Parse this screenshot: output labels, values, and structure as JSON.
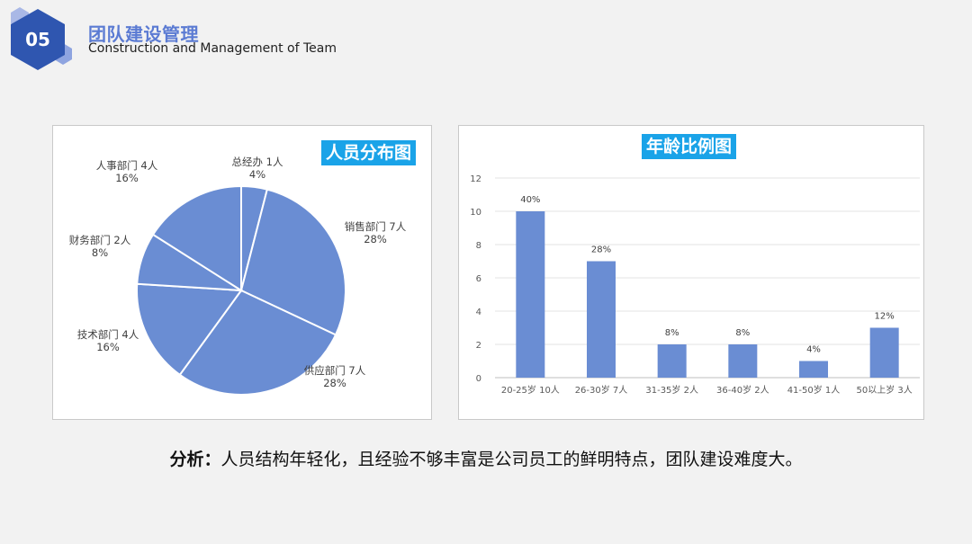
{
  "header": {
    "number": "05",
    "title": "团队建设管理",
    "subtitle": "Construction and Management of Team"
  },
  "colors": {
    "accent": "#5b7bd3",
    "hex_dark": "#2f56b0",
    "hex_light": "#8ea4e0",
    "title_bg": "#1aa3e8",
    "series": "#6a8dd3"
  },
  "chart_data": [
    {
      "type": "pie",
      "title": "人员分布图",
      "slices": [
        {
          "name": "总经办",
          "count": "1人",
          "value": 4,
          "pct_label": "4%"
        },
        {
          "name": "销售部门",
          "count": "7人",
          "value": 28,
          "pct_label": "28%"
        },
        {
          "name": "供应部门",
          "count": "7人",
          "value": 28,
          "pct_label": "28%"
        },
        {
          "name": "技术部门",
          "count": "4人",
          "value": 16,
          "pct_label": "16%"
        },
        {
          "name": "财务部门",
          "count": "2人",
          "value": 8,
          "pct_label": "8%"
        },
        {
          "name": "人事部门",
          "count": "4人",
          "value": 16,
          "pct_label": "16%"
        }
      ]
    },
    {
      "type": "bar",
      "title": "年龄比例图",
      "categories": [
        "20-25岁",
        "26-30岁",
        "31-35岁",
        "36-40岁",
        "41-50岁",
        "50以上岁"
      ],
      "count_labels": [
        "10人",
        "7人",
        "2人",
        "2人",
        "1人",
        "3人"
      ],
      "values": [
        10,
        7,
        2,
        2,
        1,
        3
      ],
      "data_labels": [
        "40%",
        "28%",
        "8%",
        "8%",
        "4%",
        "12%"
      ],
      "ylim": [
        0,
        12
      ],
      "yticks": [
        0,
        2,
        4,
        6,
        8,
        10,
        12
      ],
      "grid": true
    }
  ],
  "analysis": {
    "label": "分析：",
    "text": "人员结构年轻化，且经验不够丰富是公司员工的鲜明特点，团队建设难度大。"
  }
}
